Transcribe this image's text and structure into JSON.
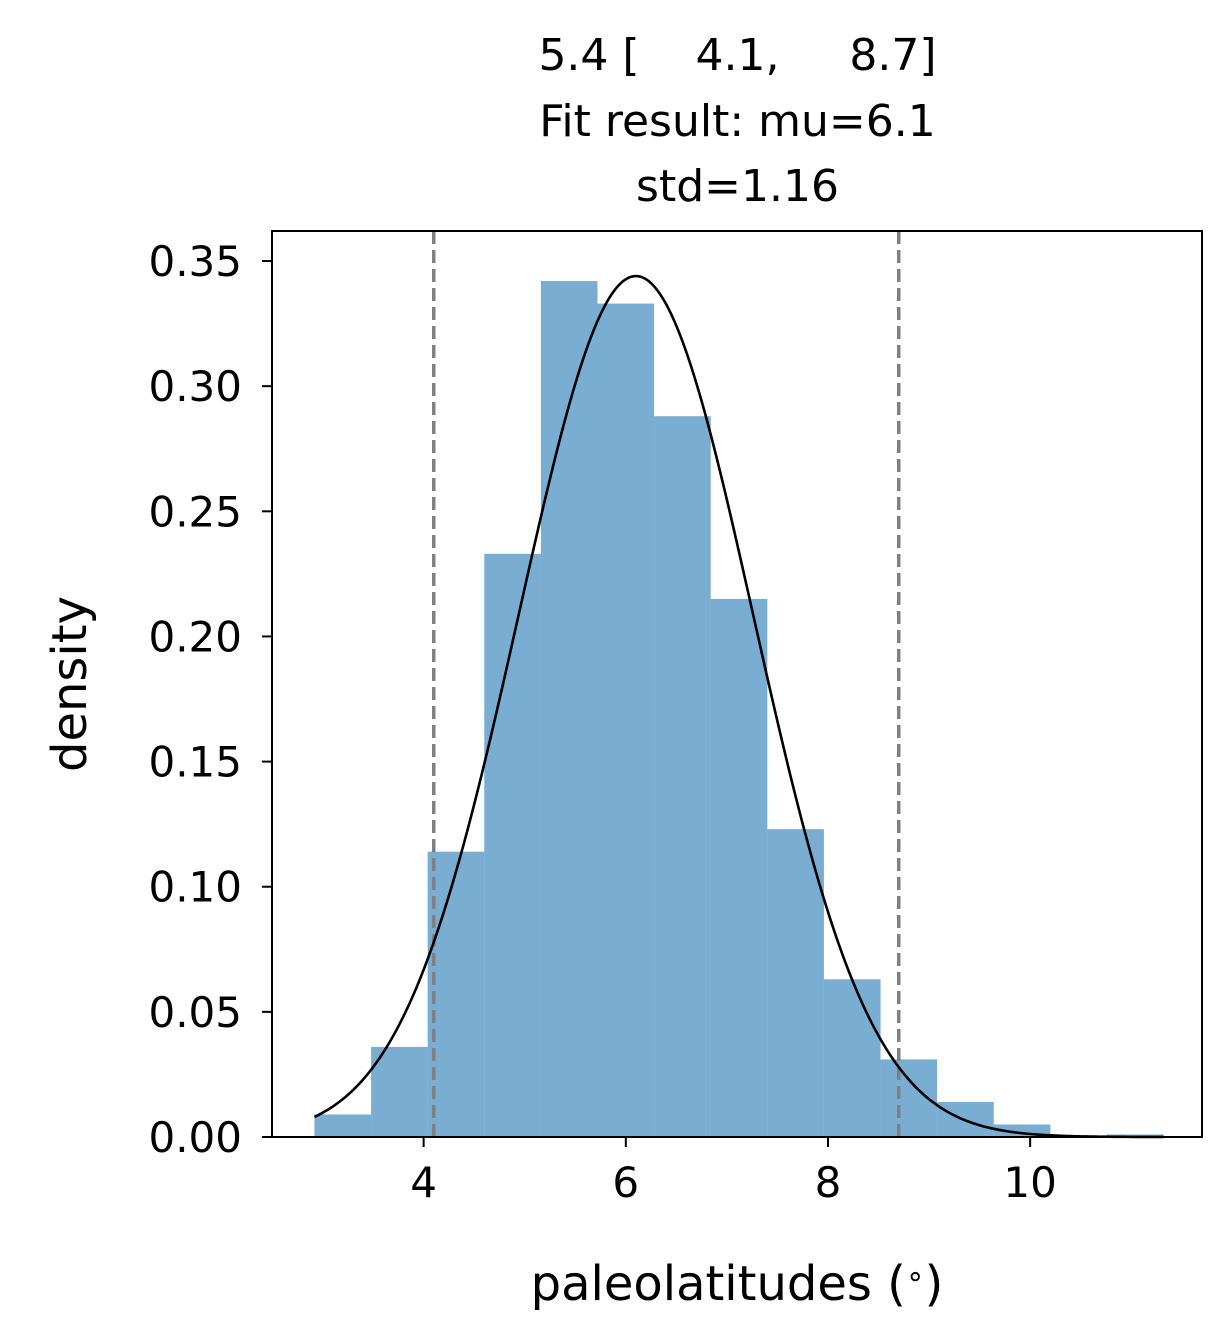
{
  "chart_data": {
    "type": "bar",
    "subtype": "histogram",
    "title_lines": [
      "5.4 [    4.1,     8.7]",
      "Fit result: mu=6.1",
      "std=1.16"
    ],
    "xlabel": "paleolatitudes ($^\\circ$)",
    "ylabel": "density",
    "xlim": [
      2.5,
      11.7
    ],
    "ylim": [
      0,
      0.362
    ],
    "xticks": [
      4,
      6,
      8,
      10
    ],
    "yticks": [
      0.0,
      0.05,
      0.1,
      0.15,
      0.2,
      0.25,
      0.3,
      0.35
    ],
    "xtick_labels": [
      "4",
      "6",
      "8",
      "10"
    ],
    "ytick_labels": [
      "0.00",
      "0.05",
      "0.10",
      "0.15",
      "0.20",
      "0.25",
      "0.30",
      "0.35"
    ],
    "bins": {
      "edges": [
        2.92,
        3.48,
        4.04,
        4.6,
        5.16,
        5.72,
        6.28,
        6.84,
        7.4,
        7.96,
        8.52,
        9.08,
        9.64,
        10.2,
        10.76,
        11.32
      ],
      "values": [
        0.009,
        0.036,
        0.114,
        0.233,
        0.342,
        0.333,
        0.288,
        0.215,
        0.123,
        0.063,
        0.031,
        0.014,
        0.005,
        0.0,
        0.001
      ]
    },
    "fit": {
      "mu": 6.1,
      "std": 1.16,
      "peak": 0.344,
      "x_range": [
        2.92,
        11.32
      ]
    },
    "vlines": [
      4.1,
      8.7
    ],
    "colors": {
      "bars": "#1f77b4",
      "bars_alpha": 0.6,
      "fit_line": "#000000",
      "vlines": "#808080"
    },
    "grid": false
  }
}
